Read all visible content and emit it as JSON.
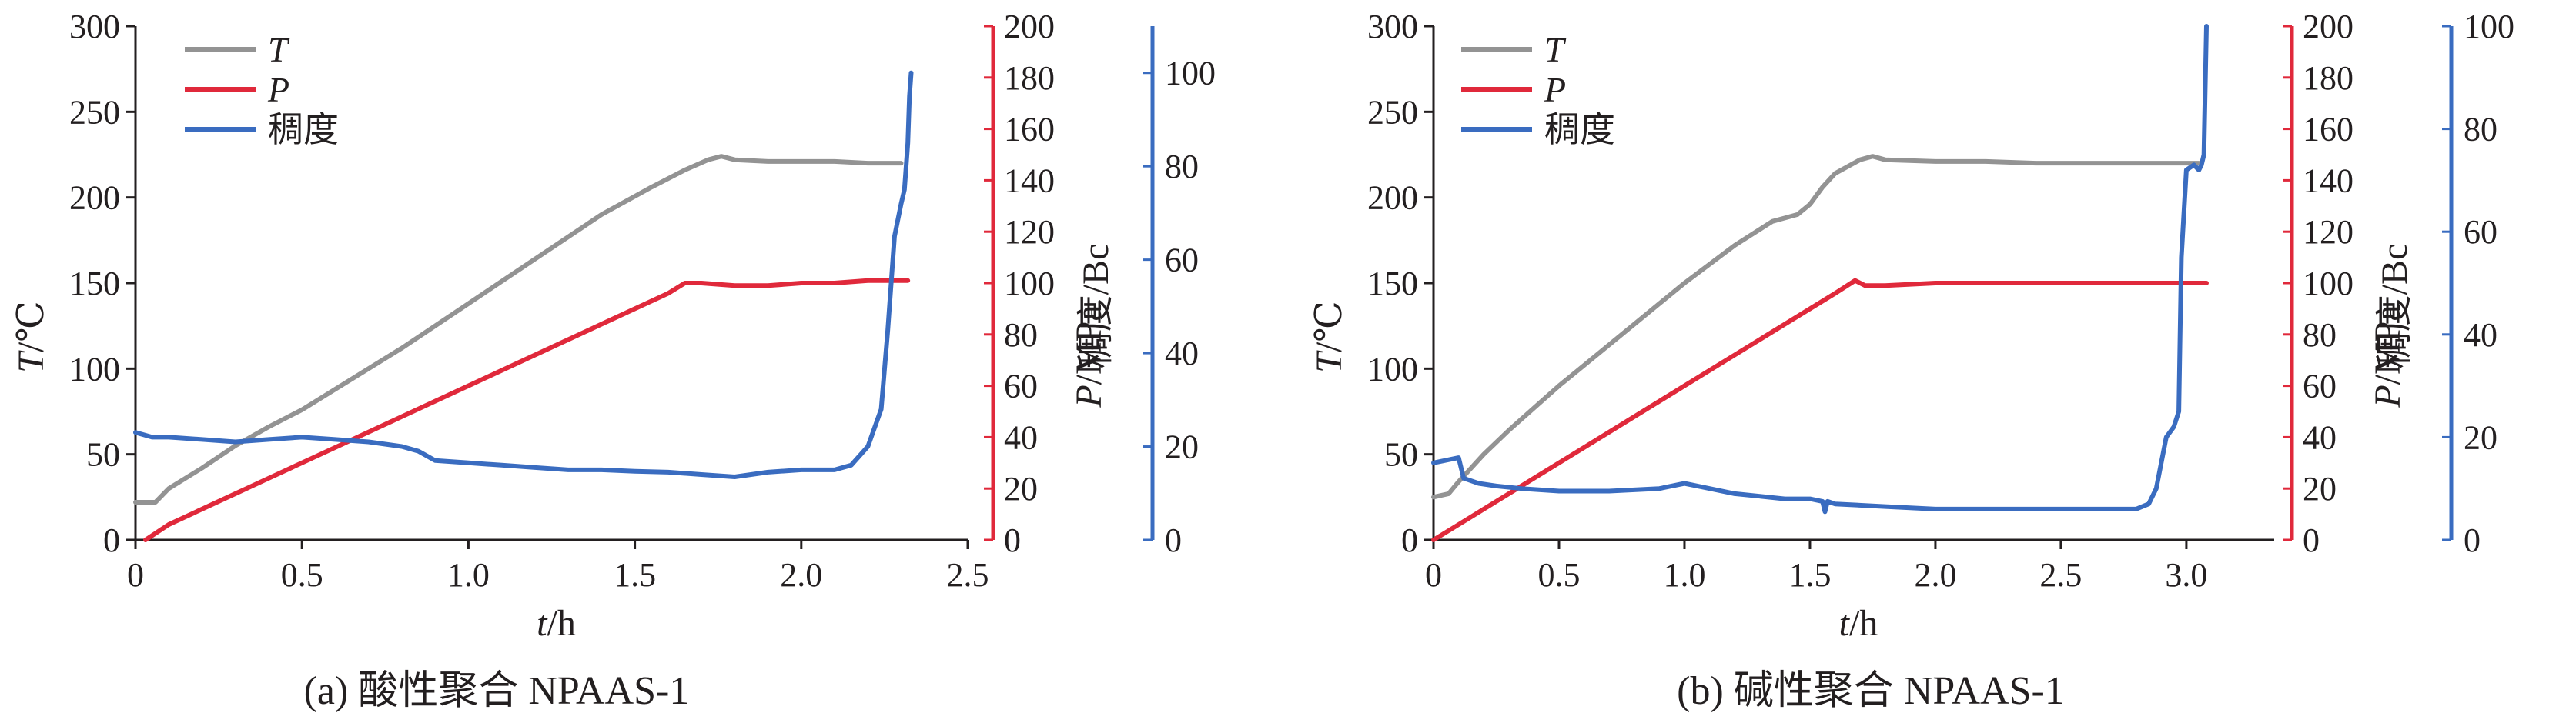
{
  "colors": {
    "T": "#939393",
    "P": "#e0293b",
    "C": "#3a6cc0",
    "axis": "#231f20"
  },
  "chart_data": [
    {
      "id": "a",
      "type": "line",
      "caption": "(a) 酸性聚合 NPAAS-1",
      "xlabel_var": "t",
      "xlabel_unit": "/h",
      "xlim": [
        0,
        2.5
      ],
      "x_ticks": [
        0,
        0.5,
        1.0,
        1.5,
        2.0,
        2.5
      ],
      "x_tick_labels": [
        "0",
        "0.5",
        "1.0",
        "1.5",
        "2.0",
        "2.5"
      ],
      "y_left": {
        "var": "T",
        "unit": "/℃",
        "range": [
          0,
          300
        ],
        "ticks": [
          0,
          50,
          100,
          150,
          200,
          250,
          300
        ],
        "tick_labels": [
          "0",
          "50",
          "100",
          "150",
          "200",
          "250",
          "300"
        ]
      },
      "y_right1": {
        "var": "P",
        "unit": "/MPa",
        "range": [
          0,
          200
        ],
        "ticks": [
          0,
          20,
          40,
          60,
          80,
          100,
          120,
          140,
          160,
          180,
          200
        ],
        "tick_labels": [
          "0",
          "20",
          "40",
          "60",
          "80",
          "100",
          "120",
          "140",
          "160",
          "180",
          "200"
        ]
      },
      "y_right2": {
        "label": "稠度/Bc",
        "range": [
          0,
          110
        ],
        "ticks": [
          0,
          20,
          40,
          60,
          80,
          100
        ],
        "tick_labels": [
          "0",
          "20",
          "40",
          "60",
          "80",
          "100"
        ]
      },
      "legend": {
        "position": "top-left",
        "items": [
          {
            "key": "T",
            "label": "T",
            "italic": true
          },
          {
            "key": "P",
            "label": "P",
            "italic": true
          },
          {
            "key": "C",
            "label": "稠度",
            "italic": false
          }
        ]
      },
      "series": [
        {
          "key": "T",
          "axis": "left",
          "x": [
            0,
            0.06,
            0.1,
            0.2,
            0.3,
            0.4,
            0.5,
            0.6,
            0.8,
            1.0,
            1.2,
            1.4,
            1.55,
            1.65,
            1.72,
            1.76,
            1.8,
            1.9,
            2.0,
            2.1,
            2.2,
            2.3
          ],
          "y": [
            22,
            22,
            30,
            42,
            55,
            66,
            76,
            88,
            112,
            138,
            164,
            190,
            206,
            216,
            222,
            224,
            222,
            221,
            221,
            221,
            220,
            220
          ]
        },
        {
          "key": "P",
          "axis": "right1",
          "x": [
            0.03,
            0.1,
            0.2,
            0.3,
            0.4,
            0.5,
            0.6,
            0.8,
            1.0,
            1.2,
            1.4,
            1.6,
            1.65,
            1.7,
            1.8,
            1.9,
            2.0,
            2.1,
            2.2,
            2.32
          ],
          "y": [
            0,
            6,
            12,
            18,
            24,
            30,
            36,
            48,
            60,
            72,
            84,
            96,
            100,
            100,
            99,
            99,
            100,
            100,
            101,
            101
          ]
        },
        {
          "key": "C",
          "axis": "right2",
          "x": [
            0,
            0.05,
            0.1,
            0.2,
            0.3,
            0.4,
            0.5,
            0.6,
            0.7,
            0.8,
            0.85,
            0.9,
            1.0,
            1.1,
            1.2,
            1.3,
            1.4,
            1.5,
            1.6,
            1.7,
            1.8,
            1.9,
            2.0,
            2.1,
            2.15,
            2.2,
            2.24,
            2.26,
            2.28,
            2.3,
            2.31,
            2.32,
            2.325,
            2.33
          ],
          "y": [
            23,
            22,
            22,
            21.5,
            21,
            21.5,
            22,
            21.5,
            21,
            20,
            19,
            17,
            16.5,
            16,
            15.5,
            15,
            15,
            14.7,
            14.5,
            14,
            13.5,
            14.5,
            15,
            15,
            16,
            20,
            28,
            45,
            65,
            72,
            75,
            85,
            95,
            100
          ]
        }
      ]
    },
    {
      "id": "b",
      "type": "line",
      "caption": "(b) 碱性聚合 NPAAS-1",
      "xlabel_var": "t",
      "xlabel_unit": "/h",
      "xlim": [
        0,
        3.35
      ],
      "x_ticks": [
        0,
        0.5,
        1.0,
        1.5,
        2.0,
        2.5,
        3.0
      ],
      "x_tick_labels": [
        "0",
        "0.5",
        "1.0",
        "1.5",
        "2.0",
        "2.5",
        "3.0"
      ],
      "y_left": {
        "var": "T",
        "unit": "/℃",
        "range": [
          0,
          300
        ],
        "ticks": [
          0,
          50,
          100,
          150,
          200,
          250,
          300
        ],
        "tick_labels": [
          "0",
          "50",
          "100",
          "150",
          "200",
          "250",
          "300"
        ]
      },
      "y_right1": {
        "var": "P",
        "unit": "/MPa",
        "range": [
          0,
          200
        ],
        "ticks": [
          0,
          20,
          40,
          60,
          80,
          100,
          120,
          140,
          160,
          180,
          200
        ],
        "tick_labels": [
          "0",
          "20",
          "40",
          "60",
          "80",
          "100",
          "120",
          "140",
          "160",
          "180",
          "200"
        ]
      },
      "y_right2": {
        "label": "稠度/Bc",
        "range": [
          0,
          100
        ],
        "ticks": [
          0,
          20,
          40,
          60,
          80,
          100
        ],
        "tick_labels": [
          "0",
          "20",
          "40",
          "60",
          "80",
          "100"
        ]
      },
      "legend": {
        "position": "top-left",
        "items": [
          {
            "key": "T",
            "label": "T",
            "italic": true
          },
          {
            "key": "P",
            "label": "P",
            "italic": true
          },
          {
            "key": "C",
            "label": "稠度",
            "italic": false
          }
        ]
      },
      "series": [
        {
          "key": "T",
          "axis": "left",
          "x": [
            0,
            0.06,
            0.1,
            0.2,
            0.3,
            0.4,
            0.5,
            0.6,
            0.8,
            1.0,
            1.2,
            1.35,
            1.4,
            1.45,
            1.5,
            1.55,
            1.6,
            1.7,
            1.75,
            1.8,
            2.0,
            2.2,
            2.4,
            2.6,
            2.8,
            3.0,
            3.05
          ],
          "y": [
            25,
            27,
            34,
            50,
            64,
            77,
            90,
            102,
            126,
            150,
            172,
            186,
            188,
            190,
            196,
            206,
            214,
            222,
            224,
            222,
            221,
            221,
            220,
            220,
            220,
            220,
            220
          ]
        },
        {
          "key": "P",
          "axis": "right1",
          "x": [
            0,
            0.05,
            0.1,
            0.2,
            0.3,
            0.4,
            0.5,
            0.6,
            0.8,
            1.0,
            1.2,
            1.4,
            1.6,
            1.68,
            1.72,
            1.8,
            2.0,
            2.2,
            2.5,
            2.8,
            3.08
          ],
          "y": [
            0,
            3,
            6,
            12,
            18,
            24,
            30,
            36,
            48,
            60,
            72,
            84,
            96,
            101,
            99,
            99,
            100,
            100,
            100,
            100,
            100
          ]
        },
        {
          "key": "C",
          "axis": "right2",
          "x": [
            0,
            0.1,
            0.12,
            0.18,
            0.25,
            0.35,
            0.5,
            0.7,
            0.9,
            1.0,
            1.1,
            1.2,
            1.3,
            1.4,
            1.5,
            1.55,
            1.56,
            1.57,
            1.6,
            1.8,
            2.0,
            2.2,
            2.4,
            2.6,
            2.8,
            2.85,
            2.88,
            2.9,
            2.92,
            2.95,
            2.97,
            2.98,
            3.0,
            3.03,
            3.05,
            3.06,
            3.07,
            3.08
          ],
          "y": [
            15,
            16,
            12,
            11,
            10.5,
            10,
            9.5,
            9.5,
            10,
            11,
            10,
            9,
            8.5,
            8,
            8,
            7.5,
            5.5,
            7.5,
            7,
            6.5,
            6,
            6,
            6,
            6,
            6,
            7,
            10,
            15,
            20,
            22,
            25,
            55,
            72,
            73,
            72,
            73,
            75,
            100
          ]
        }
      ]
    }
  ]
}
